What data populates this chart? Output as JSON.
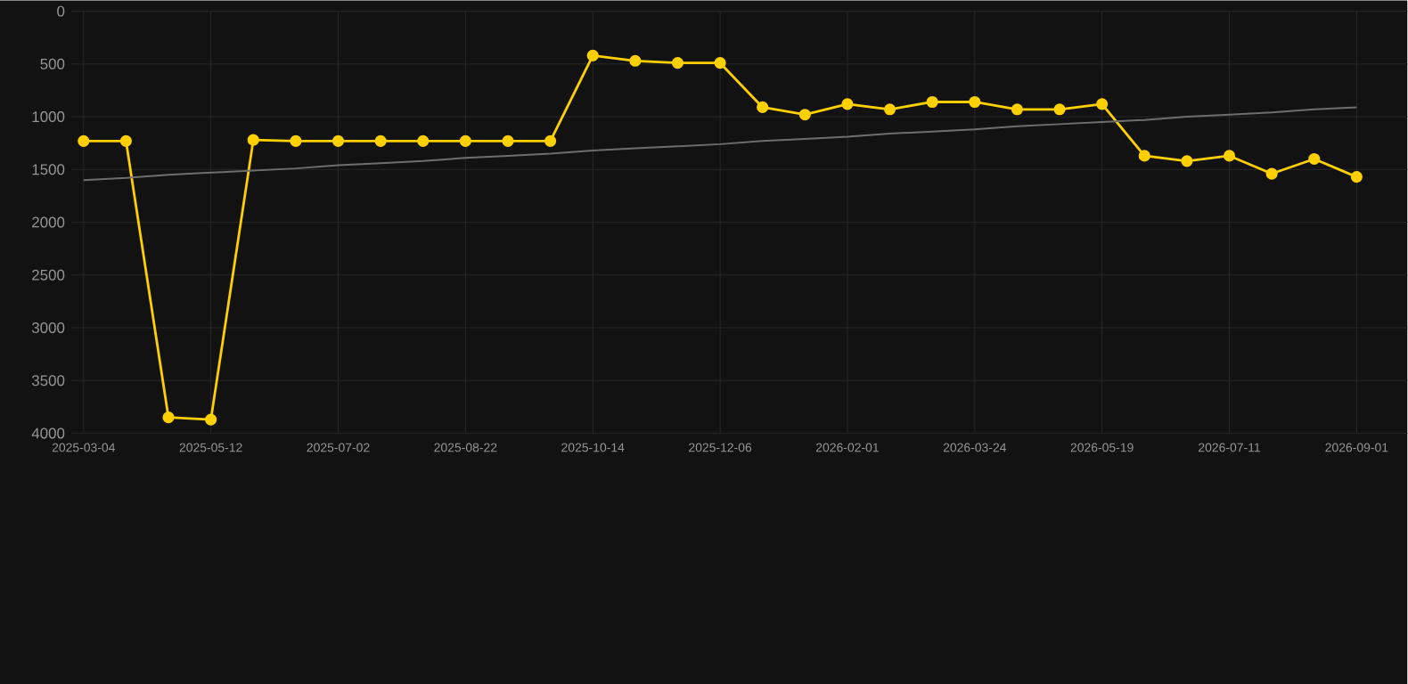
{
  "chart_data": {
    "type": "line",
    "categories": [
      "2025-03-04",
      null,
      null,
      "2025-05-12",
      null,
      null,
      "2025-07-02",
      null,
      null,
      "2025-08-22",
      null,
      null,
      "2025-10-14",
      null,
      null,
      "2025-12-06",
      null,
      null,
      "2026-02-01",
      null,
      null,
      "2026-03-24",
      null,
      null,
      "2026-05-19",
      null,
      null,
      "2026-07-11",
      null,
      null,
      "2026-09-01"
    ],
    "series": [
      {
        "color": "#ffd000",
        "marker": "circle",
        "values": [
          1230,
          1230,
          3850,
          3870,
          1220,
          1230,
          1230,
          1230,
          1230,
          1230,
          1230,
          1230,
          420,
          470,
          490,
          490,
          910,
          980,
          880,
          930,
          860,
          860,
          930,
          930,
          880,
          1370,
          1420,
          1370,
          1540,
          1400,
          1570
        ]
      },
      {
        "type": "line",
        "color": "#6e6e6e",
        "marker": "none",
        "values": [
          1600,
          1580,
          1550,
          1530,
          1510,
          1490,
          1460,
          1440,
          1420,
          1390,
          1370,
          1350,
          1320,
          1300,
          1280,
          1260,
          1230,
          1210,
          1190,
          1160,
          1140,
          1120,
          1090,
          1070,
          1050,
          1030,
          1000,
          980,
          960,
          930,
          910
        ]
      }
    ],
    "ylim": [
      4000,
      0
    ],
    "yticks": [
      0,
      500,
      1000,
      1500,
      2000,
      2500,
      3000,
      3500,
      4000
    ],
    "grid": true,
    "line_style": "solid"
  }
}
